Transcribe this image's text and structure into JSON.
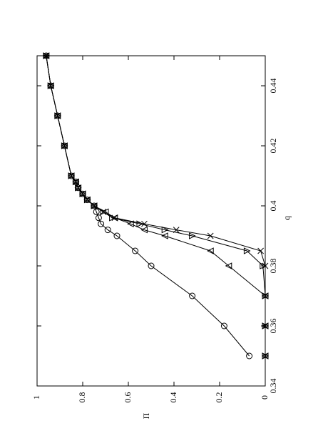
{
  "chart_data": {
    "type": "line",
    "x_label": "q",
    "y_label": "Π",
    "x": [
      0.35,
      0.36,
      0.37,
      0.38,
      0.385,
      0.39,
      0.392,
      0.394,
      0.396,
      0.398,
      0.4,
      0.402,
      0.404,
      0.406,
      0.408,
      0.41,
      0.42,
      0.43,
      0.44,
      0.45
    ],
    "series": [
      {
        "marker": "circle",
        "color": "#000000",
        "values": [
          0.07,
          0.18,
          0.32,
          0.5,
          0.57,
          0.65,
          0.69,
          0.72,
          0.73,
          0.74,
          0.75,
          0.78,
          0.8,
          0.82,
          0.83,
          0.85,
          0.88,
          0.91,
          0.94,
          0.96
        ]
      },
      {
        "marker": "triangle-left",
        "color": "#000000",
        "values": [
          0,
          0,
          0,
          0.16,
          0.24,
          0.44,
          0.53,
          0.59,
          0.66,
          0.7,
          0.75,
          0.78,
          0.8,
          0.82,
          0.83,
          0.85,
          0.88,
          0.91,
          0.94,
          0.96
        ]
      },
      {
        "marker": "triangle-right",
        "color": "#000000",
        "values": [
          0,
          0,
          0,
          0.01,
          0.08,
          0.32,
          0.44,
          0.55,
          0.67,
          0.71,
          0.75,
          0.78,
          0.8,
          0.82,
          0.83,
          0.85,
          0.88,
          0.91,
          0.94,
          0.96
        ]
      },
      {
        "marker": "x",
        "color": "#000000",
        "values": [
          0,
          0,
          0,
          0,
          0.02,
          0.24,
          0.39,
          0.53,
          0.66,
          0.71,
          0.75,
          0.78,
          0.8,
          0.82,
          0.83,
          0.85,
          0.88,
          0.91,
          0.94,
          0.96
        ]
      }
    ],
    "xlim": [
      0.34,
      0.45
    ],
    "xticks": [
      0.34,
      0.36,
      0.38,
      0.4,
      0.42,
      0.44
    ],
    "ylim": [
      0,
      1
    ],
    "yticks": [
      0,
      0.2,
      0.4,
      0.6,
      0.8,
      1
    ],
    "rotated": true
  }
}
